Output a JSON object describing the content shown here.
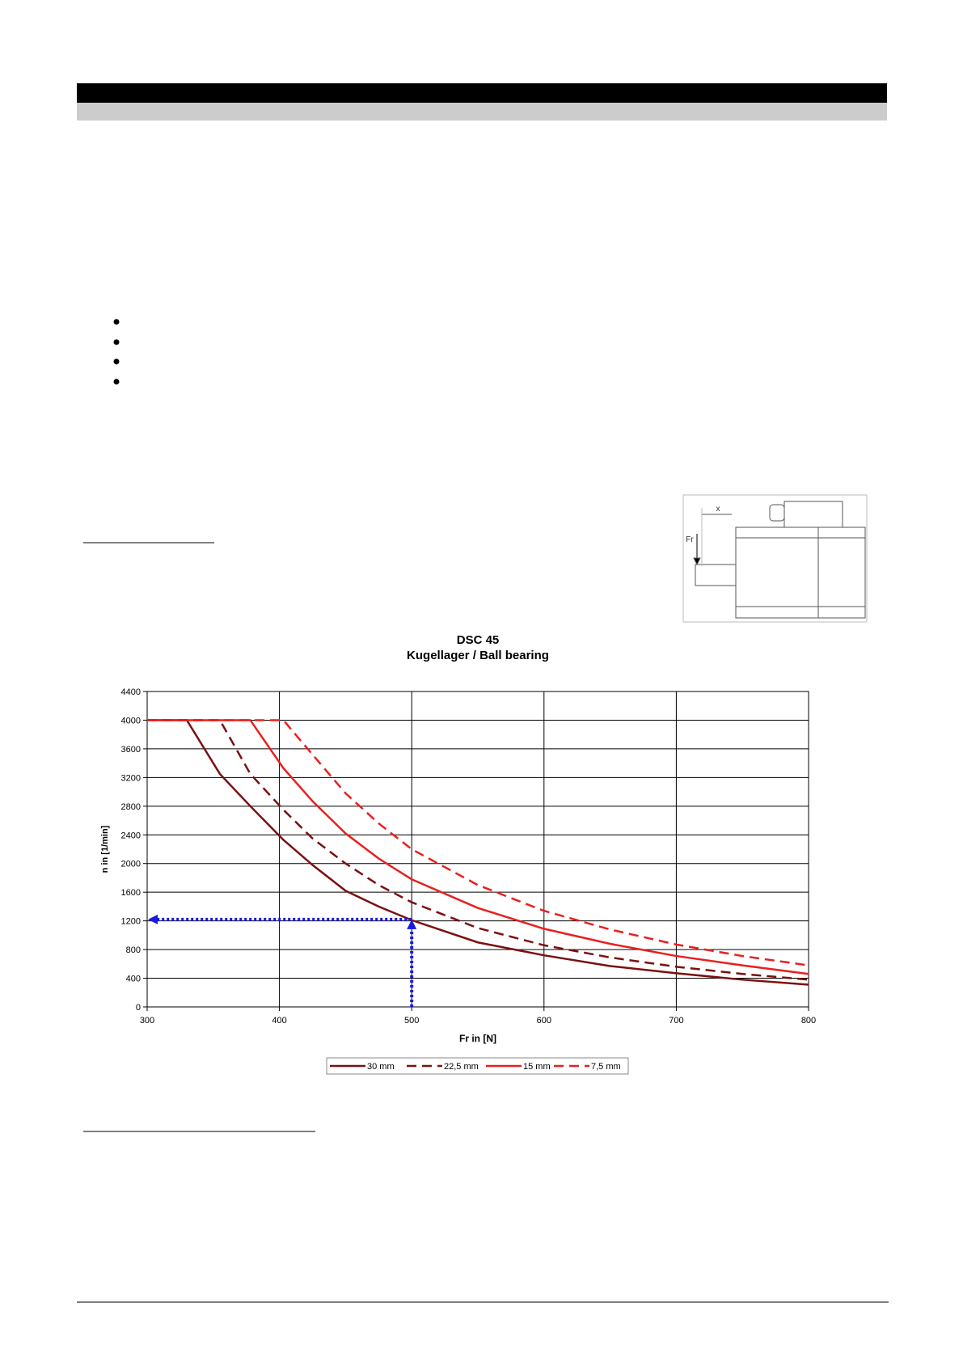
{
  "chart_data": {
    "type": "line",
    "title": "DSC 45",
    "subtitle": "Kugellager / Ball bearing",
    "x_label": "Fr in [N]",
    "y_label": "n in [1/min]",
    "x": [
      300,
      330,
      355,
      378,
      403,
      425,
      450,
      475,
      500,
      550,
      600,
      650,
      700,
      750,
      800
    ],
    "series": [
      {
        "name": "30 mm",
        "color": "#7b1010",
        "dashed": false,
        "values": [
          4000,
          4000,
          3250,
          2800,
          2330,
          1980,
          1620,
          1400,
          1210,
          900,
          720,
          570,
          470,
          380,
          310
        ]
      },
      {
        "name": "22,5 mm",
        "color": "#7b1010",
        "dashed": true,
        "values": [
          4000,
          4000,
          4000,
          3250,
          2750,
          2350,
          2000,
          1700,
          1460,
          1100,
          860,
          690,
          560,
          460,
          380
        ]
      },
      {
        "name": "15 mm",
        "color": "#e8201e",
        "dashed": false,
        "values": [
          4000,
          4000,
          4000,
          4000,
          3330,
          2870,
          2420,
          2070,
          1780,
          1380,
          1090,
          880,
          710,
          580,
          460
        ]
      },
      {
        "name": "7,5 mm",
        "color": "#e8201e",
        "dashed": true,
        "values": [
          4000,
          4000,
          4000,
          4000,
          4000,
          3520,
          2980,
          2560,
          2200,
          1700,
          1340,
          1080,
          870,
          710,
          580
        ]
      }
    ],
    "reading": {
      "x": 500,
      "y": 1220,
      "color": "#1a1adc"
    },
    "xlim": [
      300,
      800
    ],
    "xticks": [
      300,
      400,
      500,
      600,
      700,
      800
    ],
    "ylim": [
      0,
      4400
    ],
    "yticks": [
      0,
      400,
      800,
      1200,
      1600,
      2000,
      2400,
      2800,
      3200,
      3600,
      4000,
      4400
    ],
    "grid": true,
    "legend": "bottom"
  },
  "diagram": {
    "distance_label": "x",
    "force_label": "Fr"
  }
}
